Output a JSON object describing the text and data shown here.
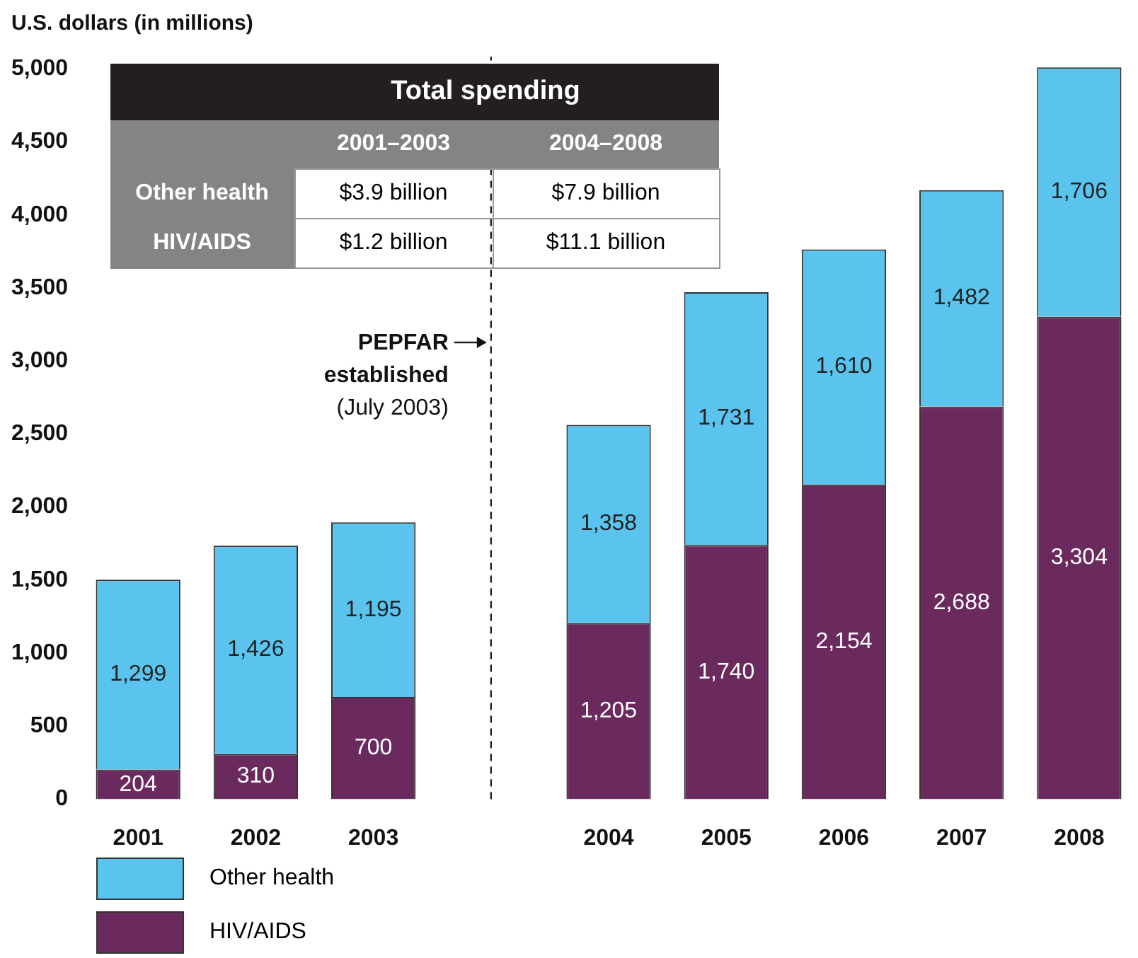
{
  "chart_data": {
    "type": "bar",
    "stacked": true,
    "ylabel": "U.S. dollars (in millions)",
    "categories": [
      "2001",
      "2002",
      "2003",
      null,
      "2004",
      "2005",
      "2006",
      "2007",
      "2008"
    ],
    "series": [
      {
        "name": "HIV/AIDS",
        "color": "#6b2a5e",
        "values": [
          204,
          310,
          700,
          null,
          1205,
          1740,
          2154,
          2688,
          3304
        ],
        "value_labels": [
          "204",
          "310",
          "700",
          null,
          "1,205",
          "1,740",
          "2,154",
          "2,688",
          "3,304"
        ]
      },
      {
        "name": "Other health",
        "color": "#5bc4ee",
        "values": [
          1299,
          1426,
          1195,
          null,
          1358,
          1731,
          1610,
          1482,
          1706
        ],
        "value_labels": [
          "1,299",
          "1,426",
          "1,195",
          null,
          "1,358",
          "1,731",
          "1,610",
          "1,482",
          "1,706"
        ]
      }
    ],
    "ylim": [
      0,
      5010
    ],
    "yticks": [
      {
        "value": 0,
        "label": "0"
      },
      {
        "value": 500,
        "label": "500"
      },
      {
        "value": 1000,
        "label": "1,000"
      },
      {
        "value": 1500,
        "label": "1,500"
      },
      {
        "value": 2000,
        "label": "2,000"
      },
      {
        "value": 2500,
        "label": "2,500"
      },
      {
        "value": 3000,
        "label": "3,000"
      },
      {
        "value": 3500,
        "label": "3,500"
      },
      {
        "value": 4000,
        "label": "4,000"
      },
      {
        "value": 4500,
        "label": "4,500"
      },
      {
        "value": 5000,
        "label": "5,000"
      }
    ],
    "legend": "bottom",
    "ref_lines": [
      {
        "axis": "x",
        "label": "PEPFAR established (July 2003)",
        "line_style": "dashed",
        "color": "#222222"
      }
    ],
    "annotations": [
      "Total spending",
      "2001–2003",
      "2004–2008",
      "Other health",
      "$3.9 billion",
      "$7.9 billion",
      "HIV/AIDS",
      "$1.2 billion",
      "$11.1 billion"
    ]
  }
}
